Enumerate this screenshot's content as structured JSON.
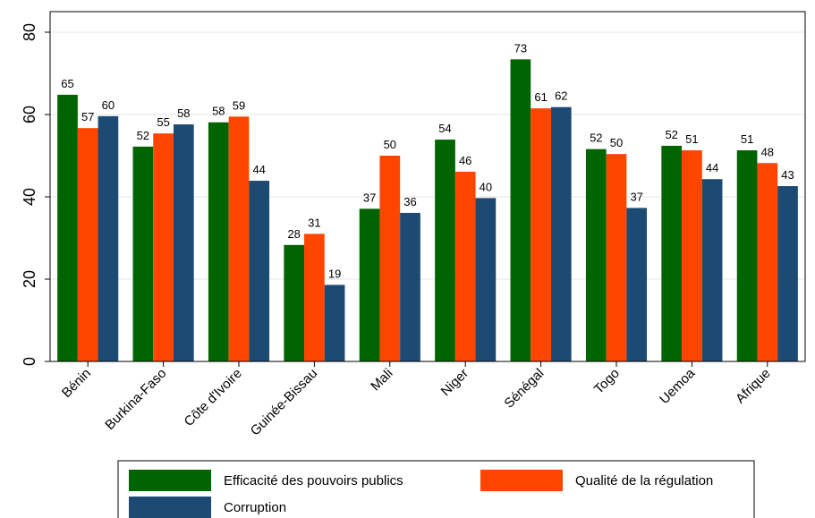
{
  "chart_data": {
    "type": "bar",
    "title": "",
    "xlabel": "",
    "ylabel": "",
    "ylim": [
      0,
      85
    ],
    "yticks": [
      0,
      20,
      40,
      60,
      80
    ],
    "grid": "horizontal",
    "legend_position": "bottom",
    "categories": [
      "Bénin",
      "Burkina-Faso",
      "Côte d'Ivoire",
      "Guinée-Bissau",
      "Mali",
      "Niger",
      "Sénégal",
      "Togo",
      "Uemoa",
      "Afrique"
    ],
    "series": [
      {
        "name": "Efficacité des pouvoirs publics",
        "color": "#006400",
        "values": [
          64.8,
          52.2,
          58.1,
          28.3,
          37.1,
          53.9,
          73.4,
          51.6,
          52.4,
          51.3
        ],
        "labels": [
          "65",
          "52",
          "58",
          "28",
          "37",
          "54",
          "73",
          "52",
          "52",
          "51"
        ]
      },
      {
        "name": "Qualité de la régulation",
        "color": "#FF4500",
        "values": [
          56.7,
          55.4,
          59.5,
          31.0,
          50.0,
          46.1,
          61.5,
          50.4,
          51.3,
          48.2
        ],
        "labels": [
          "57",
          "55",
          "59",
          "31",
          "50",
          "46",
          "61",
          "50",
          "51",
          "48"
        ]
      },
      {
        "name": "Corruption",
        "color": "#1C4A72",
        "values": [
          59.6,
          57.6,
          43.9,
          18.6,
          36.1,
          39.7,
          61.8,
          37.3,
          44.3,
          42.6
        ],
        "labels": [
          "60",
          "58",
          "44",
          "19",
          "36",
          "40",
          "62",
          "37",
          "44",
          "43"
        ]
      }
    ]
  }
}
